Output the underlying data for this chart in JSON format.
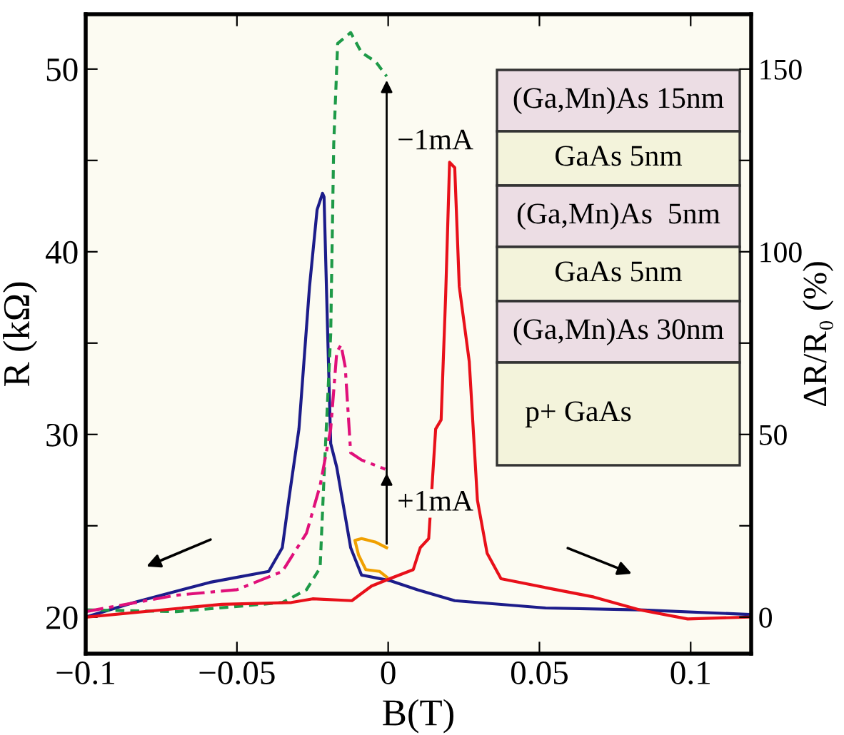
{
  "chart_data": {
    "type": "line",
    "xlabel": "B(T)",
    "ylabel": "R (kΩ)",
    "y2label": "ΔR/R₀ (%)",
    "xlim": [
      -0.1,
      0.12
    ],
    "xticks": [
      {
        "value": -0.1,
        "label": "−0.1"
      },
      {
        "value": -0.05,
        "label": "−0.05"
      },
      0,
      0.05,
      0.1
    ],
    "ylim": [
      18,
      53
    ],
    "yticks": [
      20,
      {
        "value": 25,
        "label": null
      },
      30,
      {
        "value": 35,
        "label": null
      },
      40,
      {
        "value": 45,
        "label": null
      },
      50
    ],
    "y2lim": [
      -10,
      165
    ],
    "y2ticks": [
      0,
      {
        "value": 25,
        "label": null
      },
      50,
      {
        "value": 75,
        "label": null
      },
      100,
      {
        "value": 125,
        "label": null
      },
      150
    ],
    "grid": false,
    "legend": false,
    "marker": "none",
    "series": [
      {
        "color": "#1c1c8a",
        "line_style": "solid",
        "x": [
          -0.1,
          -0.084,
          -0.059,
          -0.0395,
          -0.035,
          -0.0327,
          -0.0295,
          -0.026,
          -0.0235,
          -0.0217,
          -0.0212,
          -0.02,
          -0.019,
          -0.017,
          -0.0124,
          -0.0088,
          0.0005,
          0.0097,
          0.022,
          0.052,
          0.083,
          0.119
        ],
        "values": [
          20,
          20.8,
          21.9,
          22.5,
          23.8,
          26.6,
          30.3,
          38.1,
          42.3,
          43.2,
          43,
          35.5,
          29.5,
          28.2,
          23.8,
          22.3,
          22,
          21.5,
          20.9,
          20.5,
          20.4,
          20.15
        ]
      },
      {
        "color": "#1e9a48",
        "line_style": "dashed",
        "x": [
          -0.1,
          -0.07,
          -0.035,
          -0.027,
          -0.0225,
          -0.0212,
          -0.019,
          -0.018,
          -0.0167,
          -0.0124,
          -0.0088,
          -0.0041,
          -0.0005
        ],
        "values": [
          20.4,
          20.3,
          20.8,
          21.5,
          22.7,
          27.7,
          35.5,
          45.9,
          51.4,
          52,
          50.9,
          50.4,
          49.6
        ]
      },
      {
        "color": "#e0107a",
        "line_style": "dashdot",
        "x": [
          -0.1,
          -0.07,
          -0.05,
          -0.035,
          -0.027,
          -0.0225,
          -0.019,
          -0.017,
          -0.0156,
          -0.0142,
          -0.0124,
          -0.0088,
          -0.001
        ],
        "values": [
          20.3,
          21.2,
          21.5,
          22.5,
          24.6,
          27.2,
          30.3,
          34.5,
          34.9,
          33.7,
          29,
          28.6,
          28.1
        ]
      },
      {
        "color": "#f0a000",
        "line_style": "solid",
        "x": [
          -0.0005,
          -0.0041,
          -0.0088,
          -0.011,
          -0.0098,
          -0.0074,
          -0.0028,
          -0.0005
        ],
        "values": [
          23.8,
          24.1,
          24.3,
          24.2,
          23.4,
          22.6,
          22.5,
          22.2
        ]
      },
      {
        "color": "#e8101a",
        "line_style": "solid",
        "x": [
          -0.1,
          -0.055,
          -0.032,
          -0.025,
          -0.012,
          -0.0055,
          0.0005,
          0.0083,
          0.0106,
          0.0134,
          0.0157,
          0.0175,
          0.019,
          0.0203,
          0.022,
          0.0235,
          0.0268,
          0.0295,
          0.0327,
          0.0373,
          0.0525,
          0.068,
          0.083,
          0.099,
          0.119
        ],
        "values": [
          20,
          20.7,
          20.8,
          21,
          20.9,
          21.7,
          22.1,
          22.6,
          23.8,
          24.3,
          30.3,
          30.8,
          37.6,
          44.9,
          44.6,
          38.1,
          34,
          26.4,
          23.5,
          22.1,
          21.6,
          21.1,
          20.4,
          19.9,
          20
        ]
      }
    ],
    "annotations": [
      "−1mA",
      "+1mA",
      "(Ga,Mn)As 15nm",
      "GaAs 5nm",
      "(Ga,Mn)As  5nm",
      "GaAs 5nm",
      "(Ga,Mn)As 30nm",
      "p+ GaAs"
    ]
  }
}
